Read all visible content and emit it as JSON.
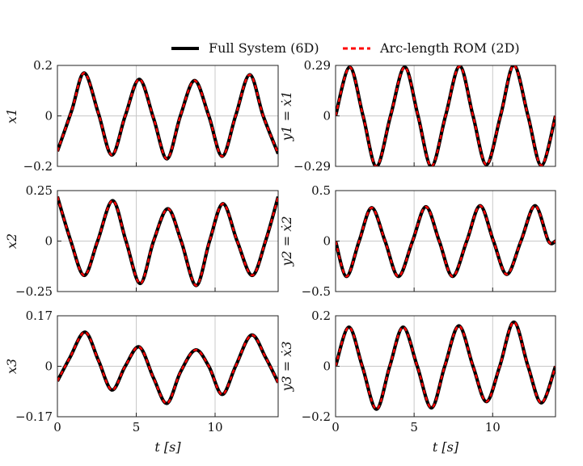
{
  "legend": {
    "full": "Full System (6D)",
    "rom": "Arc-length ROM (2D)"
  },
  "colors": {
    "full": "#000000",
    "rom": "#ff0000",
    "grid": "#c8c8c8",
    "axes": "#222222"
  },
  "chart_data": [
    {
      "type": "line",
      "ylabel": "x1",
      "xlim": [
        0,
        14
      ],
      "ylim": [
        -0.2,
        0.2
      ],
      "yticks": [
        {
          "v": 0.2,
          "t": "0.2"
        },
        {
          "v": 0,
          "t": "0"
        },
        {
          "v": -0.2,
          "t": "−0.2"
        }
      ],
      "xticks": [
        {
          "v": 0,
          "t": ""
        },
        {
          "v": 5,
          "t": ""
        },
        {
          "v": 10,
          "t": ""
        }
      ],
      "series": [
        {
          "name": "Full System (6D)",
          "x": [
            0,
            0.9,
            1.7,
            2.6,
            3.45,
            4.3,
            5.2,
            6.1,
            6.95,
            7.8,
            8.7,
            9.6,
            10.45,
            11.3,
            12.2,
            13.05,
            14
          ],
          "y": [
            -0.14,
            0.02,
            0.17,
            0.01,
            -0.155,
            0.0,
            0.145,
            -0.01,
            -0.17,
            0.0,
            0.14,
            0.0,
            -0.16,
            0.0,
            0.163,
            0.0,
            -0.15
          ]
        },
        {
          "name": "Arc-length ROM (2D)",
          "x": [
            0,
            0.9,
            1.7,
            2.6,
            3.45,
            4.3,
            5.2,
            6.1,
            6.95,
            7.8,
            8.7,
            9.6,
            10.45,
            11.3,
            12.2,
            13.05,
            14
          ],
          "y": [
            -0.14,
            0.02,
            0.17,
            0.01,
            -0.155,
            0.0,
            0.145,
            -0.01,
            -0.17,
            0.0,
            0.14,
            0.0,
            -0.16,
            0.0,
            0.163,
            0.0,
            -0.15
          ]
        }
      ]
    },
    {
      "type": "line",
      "ylabel": "y1 = ẋ1",
      "xlim": [
        0,
        14
      ],
      "ylim": [
        -0.29,
        0.29
      ],
      "yticks": [
        {
          "v": 0.29,
          "t": "0.29"
        },
        {
          "v": 0,
          "t": "0"
        },
        {
          "v": -0.29,
          "t": "−0.29"
        }
      ],
      "xticks": [
        {
          "v": 0,
          "t": ""
        },
        {
          "v": 5,
          "t": ""
        },
        {
          "v": 10,
          "t": ""
        }
      ],
      "series": [
        {
          "name": "Full System (6D)",
          "x": [
            0,
            0.9,
            1.75,
            2.6,
            3.5,
            4.4,
            5.25,
            6.1,
            7.0,
            7.9,
            8.75,
            9.6,
            10.5,
            11.35,
            12.25,
            13.1,
            14
          ],
          "y": [
            0.0,
            0.28,
            0.0,
            -0.29,
            0.0,
            0.28,
            0.0,
            -0.29,
            0.0,
            0.285,
            0.0,
            -0.28,
            0.0,
            0.29,
            0.0,
            -0.285,
            0.0
          ]
        },
        {
          "name": "Arc-length ROM (2D)",
          "x": [
            0,
            0.9,
            1.75,
            2.6,
            3.5,
            4.4,
            5.25,
            6.1,
            7.0,
            7.9,
            8.75,
            9.6,
            10.5,
            11.35,
            12.25,
            13.1,
            14
          ],
          "y": [
            0.0,
            0.28,
            0.0,
            -0.29,
            0.0,
            0.28,
            0.0,
            -0.29,
            0.0,
            0.285,
            0.0,
            -0.28,
            0.0,
            0.29,
            0.0,
            -0.285,
            0.0
          ]
        }
      ]
    },
    {
      "type": "line",
      "ylabel": "x2",
      "xlim": [
        0,
        14
      ],
      "ylim": [
        -0.25,
        0.25
      ],
      "yticks": [
        {
          "v": 0.25,
          "t": "0.25"
        },
        {
          "v": 0,
          "t": "0"
        },
        {
          "v": -0.25,
          "t": "−0.25"
        }
      ],
      "xticks": [
        {
          "v": 0,
          "t": ""
        },
        {
          "v": 5,
          "t": ""
        },
        {
          "v": 10,
          "t": ""
        }
      ],
      "series": [
        {
          "name": "Full System (6D)",
          "x": [
            0,
            0.85,
            1.7,
            2.55,
            3.5,
            4.35,
            5.25,
            6.1,
            7.0,
            7.85,
            8.8,
            9.65,
            10.5,
            11.4,
            12.35,
            13.2,
            14
          ],
          "y": [
            0.22,
            0.0,
            -0.17,
            0.0,
            0.2,
            0.0,
            -0.21,
            0.0,
            0.16,
            0.0,
            -0.22,
            0.0,
            0.185,
            0.0,
            -0.17,
            0.0,
            0.22
          ]
        },
        {
          "name": "Arc-length ROM (2D)",
          "x": [
            0,
            0.85,
            1.7,
            2.55,
            3.5,
            4.35,
            5.25,
            6.1,
            7.0,
            7.85,
            8.8,
            9.65,
            10.5,
            11.4,
            12.35,
            13.2,
            14
          ],
          "y": [
            0.22,
            0.0,
            -0.17,
            0.0,
            0.2,
            0.0,
            -0.21,
            0.0,
            0.16,
            0.0,
            -0.22,
            0.0,
            0.185,
            0.0,
            -0.17,
            0.0,
            0.22
          ]
        }
      ]
    },
    {
      "type": "line",
      "ylabel": "y2 = ẋ2",
      "xlim": [
        0,
        14
      ],
      "ylim": [
        -0.5,
        0.5
      ],
      "yticks": [
        {
          "v": 0.5,
          "t": "0.5"
        },
        {
          "v": 0,
          "t": "0"
        },
        {
          "v": -0.5,
          "t": "−0.5"
        }
      ],
      "xticks": [
        {
          "v": 0,
          "t": ""
        },
        {
          "v": 5,
          "t": ""
        },
        {
          "v": 10,
          "t": ""
        }
      ],
      "series": [
        {
          "name": "Full System (6D)",
          "x": [
            0,
            0.7,
            1.5,
            2.3,
            3.15,
            4.0,
            4.9,
            5.75,
            6.6,
            7.45,
            8.35,
            9.2,
            10.05,
            10.9,
            11.8,
            12.7,
            13.55,
            14
          ],
          "y": [
            0.0,
            -0.35,
            0.0,
            0.33,
            0.0,
            -0.35,
            0.0,
            0.34,
            0.0,
            -0.35,
            0.0,
            0.35,
            0.0,
            -0.33,
            0.0,
            0.35,
            0.0,
            0.0
          ]
        },
        {
          "name": "Arc-length ROM (2D)",
          "x": [
            0,
            0.7,
            1.5,
            2.3,
            3.15,
            4.0,
            4.9,
            5.75,
            6.6,
            7.45,
            8.35,
            9.2,
            10.05,
            10.9,
            11.8,
            12.7,
            13.55,
            14
          ],
          "y": [
            0.0,
            -0.35,
            0.0,
            0.33,
            0.0,
            -0.35,
            0.0,
            0.34,
            0.0,
            -0.35,
            0.0,
            0.35,
            0.0,
            -0.33,
            0.0,
            0.35,
            0.0,
            0.0
          ]
        }
      ]
    },
    {
      "type": "line",
      "ylabel": "x3",
      "xlabel": "t [s]",
      "xlim": [
        0,
        14
      ],
      "ylim": [
        -0.17,
        0.17
      ],
      "yticks": [
        {
          "v": 0.17,
          "t": "0.17"
        },
        {
          "v": 0,
          "t": "0"
        },
        {
          "v": -0.17,
          "t": "−0.17"
        }
      ],
      "xticks": [
        {
          "v": 0,
          "t": "0"
        },
        {
          "v": 5,
          "t": "5"
        },
        {
          "v": 10,
          "t": "10"
        }
      ],
      "series": [
        {
          "name": "Full System (6D)",
          "x": [
            0,
            0.8,
            1.75,
            2.6,
            3.45,
            4.3,
            5.2,
            6.1,
            6.95,
            7.8,
            8.75,
            9.6,
            10.45,
            11.3,
            12.3,
            13.2,
            14
          ],
          "y": [
            -0.05,
            0.03,
            0.115,
            0.02,
            -0.08,
            0.0,
            0.065,
            -0.04,
            -0.125,
            -0.02,
            0.055,
            0.0,
            -0.095,
            0.0,
            0.105,
            0.03,
            -0.055
          ]
        },
        {
          "name": "Arc-length ROM (2D)",
          "x": [
            0,
            0.8,
            1.75,
            2.6,
            3.45,
            4.3,
            5.2,
            6.1,
            6.95,
            7.8,
            8.75,
            9.6,
            10.45,
            11.3,
            12.3,
            13.2,
            14
          ],
          "y": [
            -0.05,
            0.03,
            0.115,
            0.02,
            -0.08,
            0.0,
            0.065,
            -0.04,
            -0.125,
            -0.02,
            0.055,
            0.0,
            -0.095,
            0.0,
            0.105,
            0.03,
            -0.055
          ]
        }
      ]
    },
    {
      "type": "line",
      "ylabel": "y3 = ẋ3",
      "xlabel": "t [s]",
      "xlim": [
        0,
        14
      ],
      "ylim": [
        -0.2,
        0.2
      ],
      "yticks": [
        {
          "v": 0.2,
          "t": "0.2"
        },
        {
          "v": 0,
          "t": "0"
        },
        {
          "v": -0.2,
          "t": "−0.2"
        }
      ],
      "xticks": [
        {
          "v": 0,
          "t": "0"
        },
        {
          "v": 5,
          "t": "5"
        },
        {
          "v": 10,
          "t": "10"
        }
      ],
      "series": [
        {
          "name": "Full System (6D)",
          "x": [
            0,
            0.85,
            1.7,
            2.6,
            3.45,
            4.3,
            5.2,
            6.1,
            6.95,
            7.85,
            8.75,
            9.6,
            10.45,
            11.35,
            12.25,
            13.1,
            14
          ],
          "y": [
            0.0,
            0.155,
            0.0,
            -0.17,
            0.0,
            0.155,
            0.0,
            -0.165,
            0.0,
            0.16,
            0.0,
            -0.14,
            0.0,
            0.175,
            0.0,
            -0.145,
            0.0
          ]
        },
        {
          "name": "Arc-length ROM (2D)",
          "x": [
            0,
            0.85,
            1.7,
            2.6,
            3.45,
            4.3,
            5.2,
            6.1,
            6.95,
            7.85,
            8.75,
            9.6,
            10.45,
            11.35,
            12.25,
            13.1,
            14
          ],
          "y": [
            0.0,
            0.155,
            0.0,
            -0.17,
            0.0,
            0.155,
            0.0,
            -0.165,
            0.0,
            0.16,
            0.0,
            -0.14,
            0.0,
            0.175,
            0.0,
            -0.145,
            0.0
          ]
        }
      ]
    }
  ]
}
